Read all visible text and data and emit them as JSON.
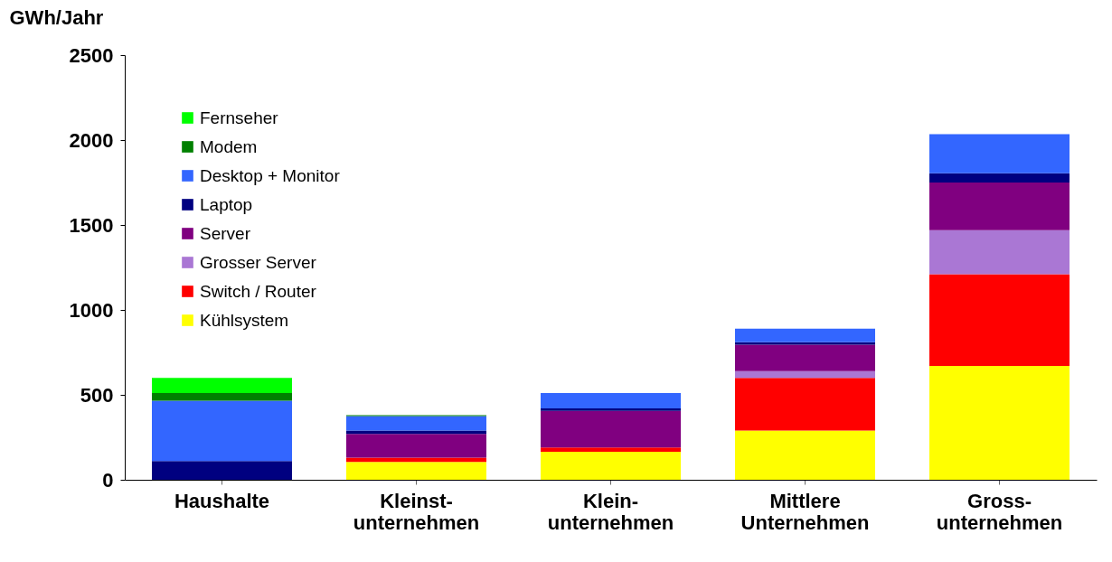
{
  "chart_data": {
    "type": "bar",
    "stacked": true,
    "ylabel": "GWh/Jahr",
    "categories": [
      "Haushalte",
      "Kleinst-\nunternehmen",
      "Klein-\nunternehmen",
      "Mittlere\nUnternehmen",
      "Gross-\nunternehmen"
    ],
    "series": [
      {
        "name": "Kühlsystem",
        "color": "#ffff00",
        "values": [
          null,
          105,
          165,
          290,
          670
        ]
      },
      {
        "name": "Switch / Router",
        "color": "#ff0000",
        "values": [
          null,
          25,
          25,
          310,
          540
        ]
      },
      {
        "name": "Grosser Server",
        "color": "#aa77d4",
        "values": [
          null,
          null,
          null,
          40,
          260
        ]
      },
      {
        "name": "Server",
        "color": "#800080",
        "values": [
          null,
          140,
          215,
          155,
          280
        ]
      },
      {
        "name": "Laptop",
        "color": "#000080",
        "values": [
          110,
          20,
          15,
          15,
          55
        ]
      },
      {
        "name": "Desktop + Monitor",
        "color": "#3366ff",
        "values": [
          355,
          85,
          90,
          80,
          230
        ]
      },
      {
        "name": "Modem",
        "color": "#008000",
        "values": [
          45,
          5,
          null,
          null,
          null
        ]
      },
      {
        "name": "Fernseher",
        "color": "#00ff00",
        "values": [
          90,
          null,
          null,
          null,
          null
        ]
      }
    ],
    "ylim": [
      0,
      2500
    ],
    "yticks": [
      0,
      500,
      1000,
      1500,
      2000,
      2500
    ],
    "grid": false,
    "legend": "top left"
  }
}
